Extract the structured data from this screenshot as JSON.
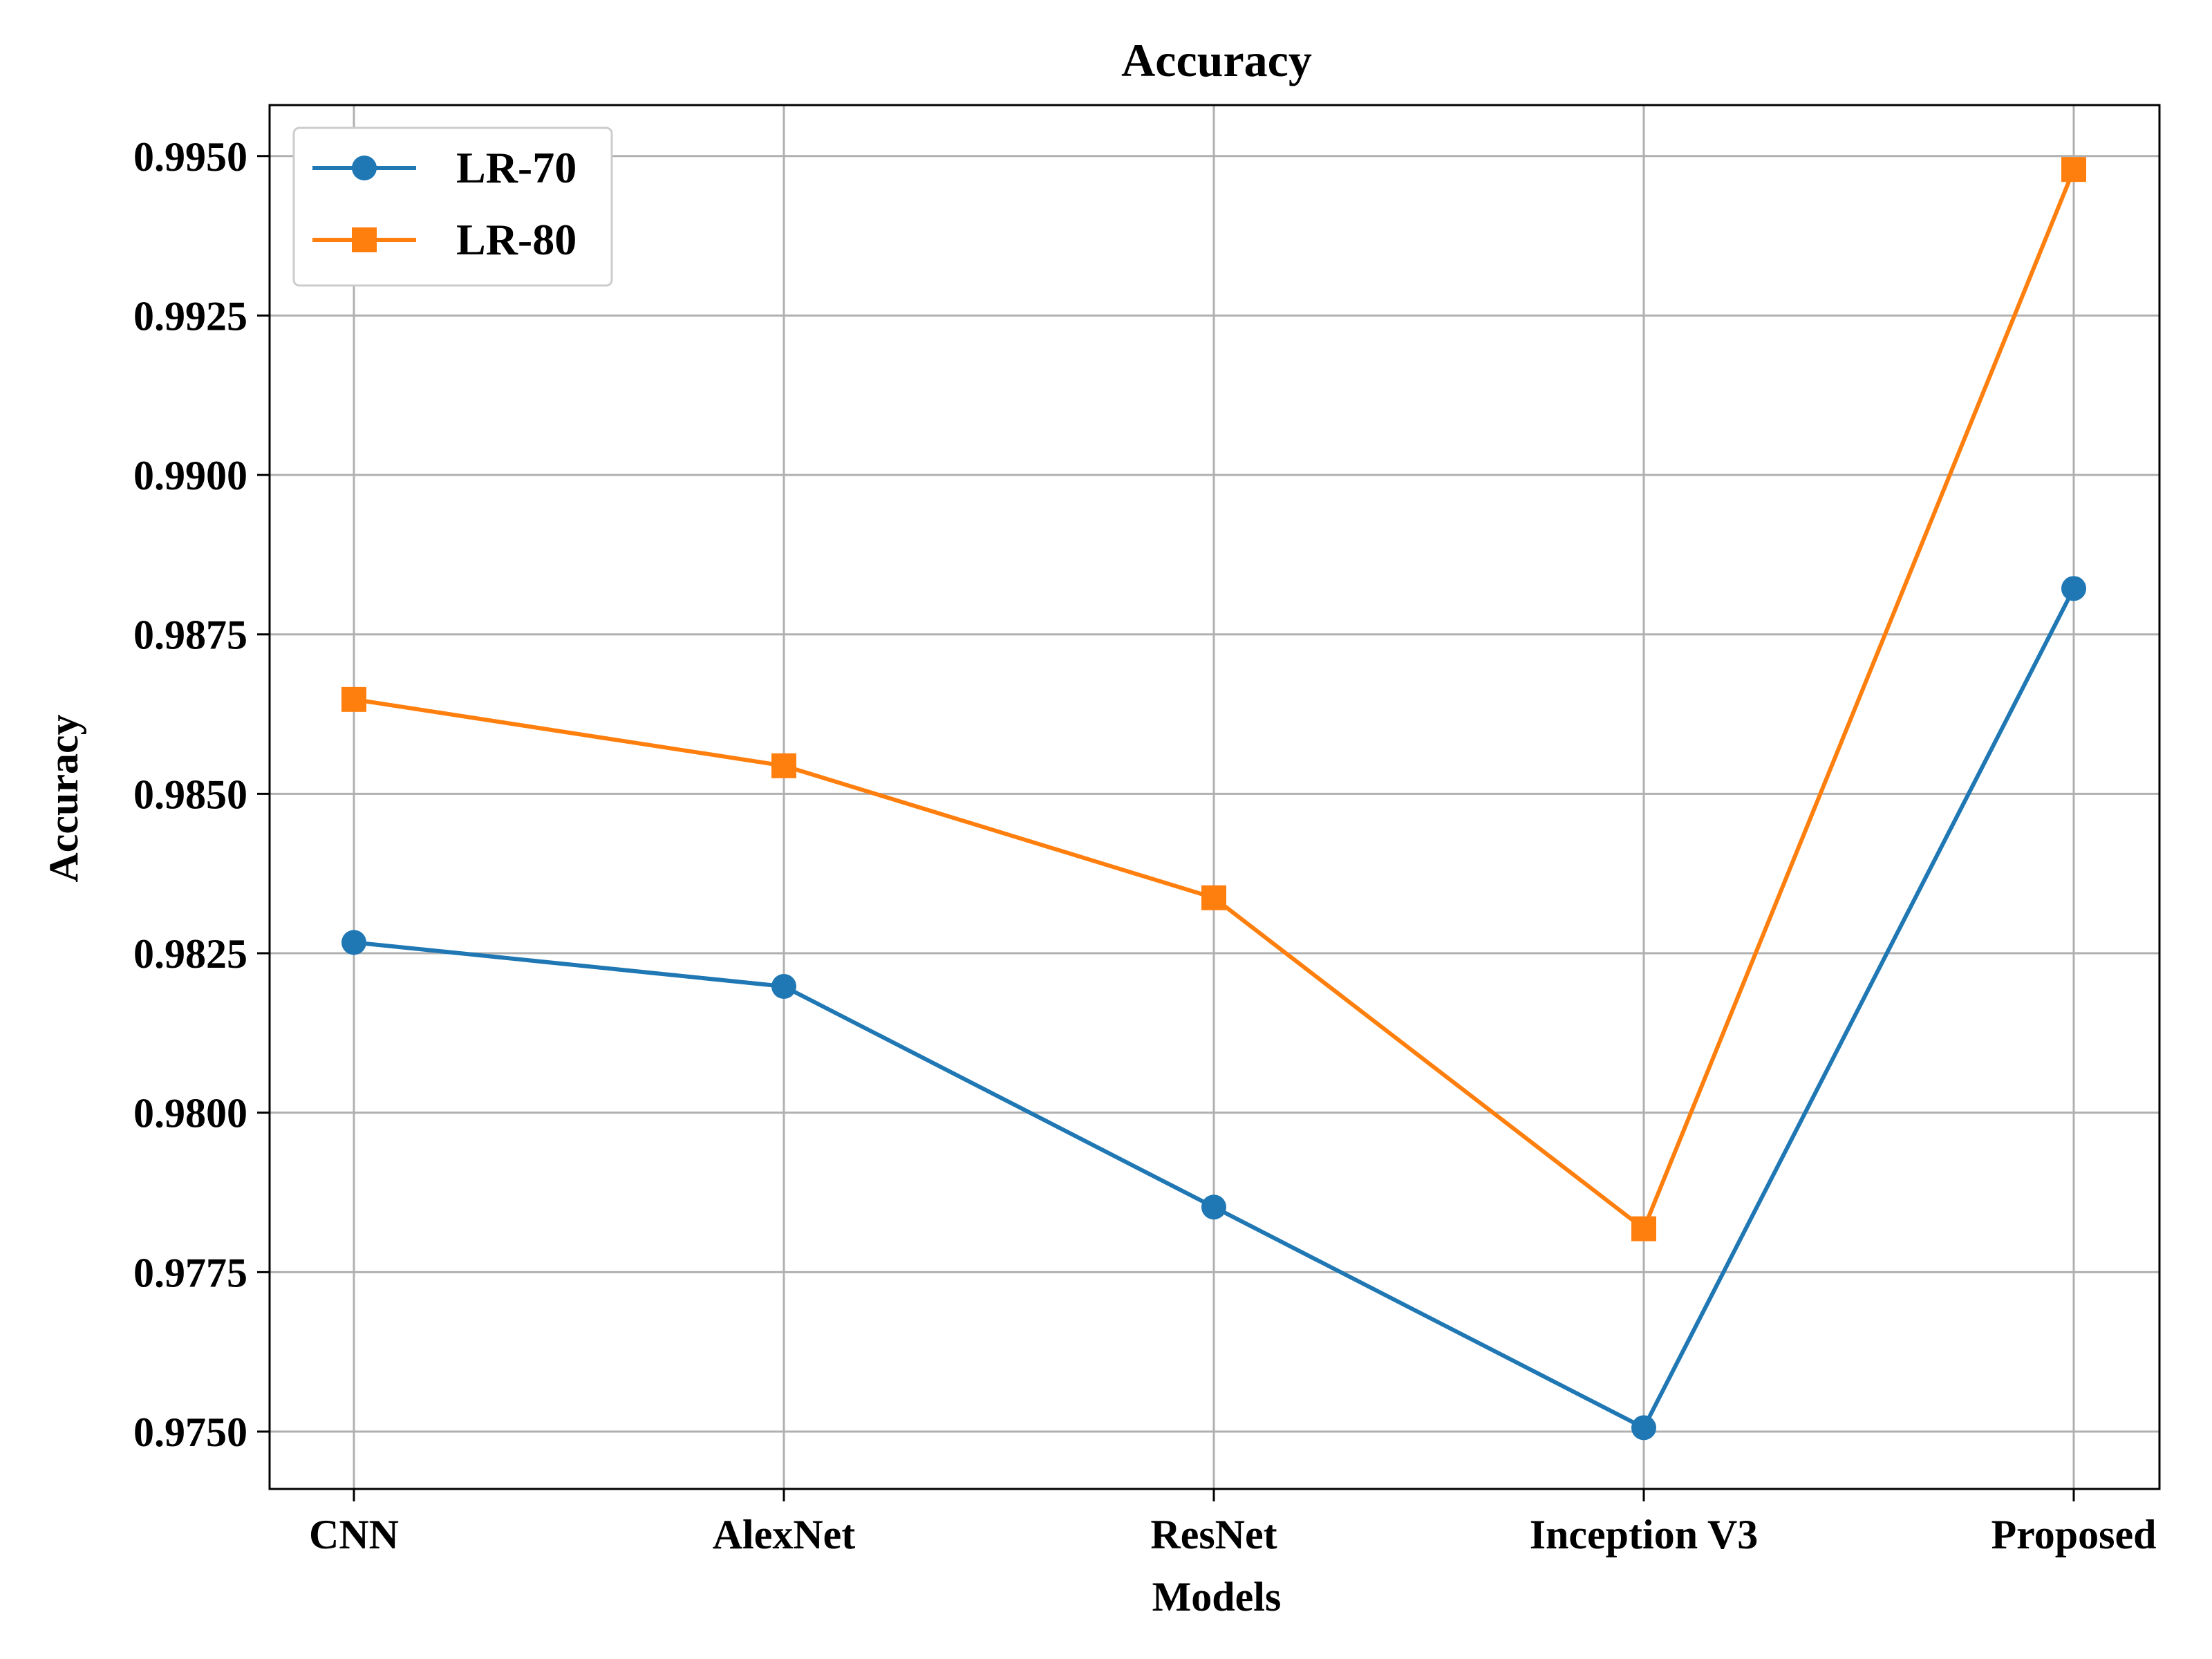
{
  "chart_data": {
    "type": "line",
    "title": "Accuracy",
    "xlabel": "Models",
    "ylabel": "Accuracy",
    "categories": [
      "CNN",
      "AlexNet",
      "ResNet",
      "Inception V3",
      "Proposed"
    ],
    "ylim": [
      0.9741,
      0.9958
    ],
    "yticks": [
      0.975,
      0.9775,
      0.98,
      0.9825,
      0.985,
      0.9875,
      0.99,
      0.9925,
      0.995
    ],
    "ytick_labels": [
      "0.9750",
      "0.9775",
      "0.9800",
      "0.9825",
      "0.9850",
      "0.9875",
      "0.9900",
      "0.9925",
      "0.9950"
    ],
    "grid": true,
    "legend_position": "top-left",
    "series": [
      {
        "name": "LR-70",
        "color": "#1f77b4",
        "marker": "circle",
        "values": [
          0.98267,
          0.98198,
          0.97852,
          0.97506,
          0.98822
        ]
      },
      {
        "name": "LR-80",
        "color": "#ff7f0e",
        "marker": "square",
        "values": [
          0.98648,
          0.98544,
          0.98337,
          0.97818,
          0.99479
        ]
      }
    ]
  }
}
